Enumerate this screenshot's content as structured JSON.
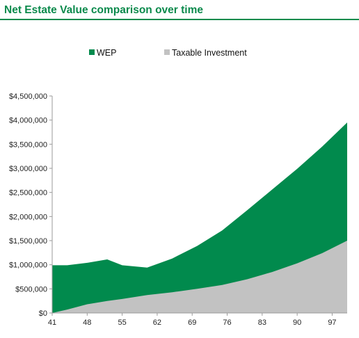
{
  "header": {
    "title": "Net Estate Value comparison over time"
  },
  "colors": {
    "title": "#0b8a4c",
    "wep": "#018a4d",
    "taxable": "#c2c2c2"
  },
  "chart_data": {
    "type": "area",
    "stacked": false,
    "title": "",
    "xlabel": "",
    "ylabel": "",
    "xlim": [
      41,
      100
    ],
    "ylim": [
      0,
      4500000
    ],
    "grid": false,
    "legend_position": "top",
    "x_ticks": [
      "41",
      "48",
      "55",
      "62",
      "69",
      "76",
      "83",
      "90",
      "97"
    ],
    "y_ticks": [
      "$0",
      "$500,000",
      "$1,000,000",
      "$1,500,000",
      "$2,000,000",
      "$2,500,000",
      "$3,000,000",
      "$3,500,000",
      "$4,000,000",
      "$4,500,000"
    ],
    "series": [
      {
        "name": "WEP",
        "color": "#018a4d",
        "x": [
          41,
          44,
          48,
          52,
          55,
          60,
          65,
          70,
          75,
          80,
          85,
          90,
          95,
          100
        ],
        "values": [
          990000,
          990000,
          1040000,
          1110000,
          990000,
          940000,
          1130000,
          1390000,
          1710000,
          2130000,
          2560000,
          2990000,
          3450000,
          3950000
        ]
      },
      {
        "name": "Taxable Investment",
        "color": "#c2c2c2",
        "x": [
          41,
          44,
          48,
          52,
          55,
          60,
          65,
          70,
          75,
          80,
          85,
          90,
          95,
          100
        ],
        "values": [
          0,
          70000,
          180000,
          250000,
          290000,
          370000,
          430000,
          500000,
          580000,
          700000,
          850000,
          1030000,
          1240000,
          1500000
        ]
      }
    ]
  }
}
